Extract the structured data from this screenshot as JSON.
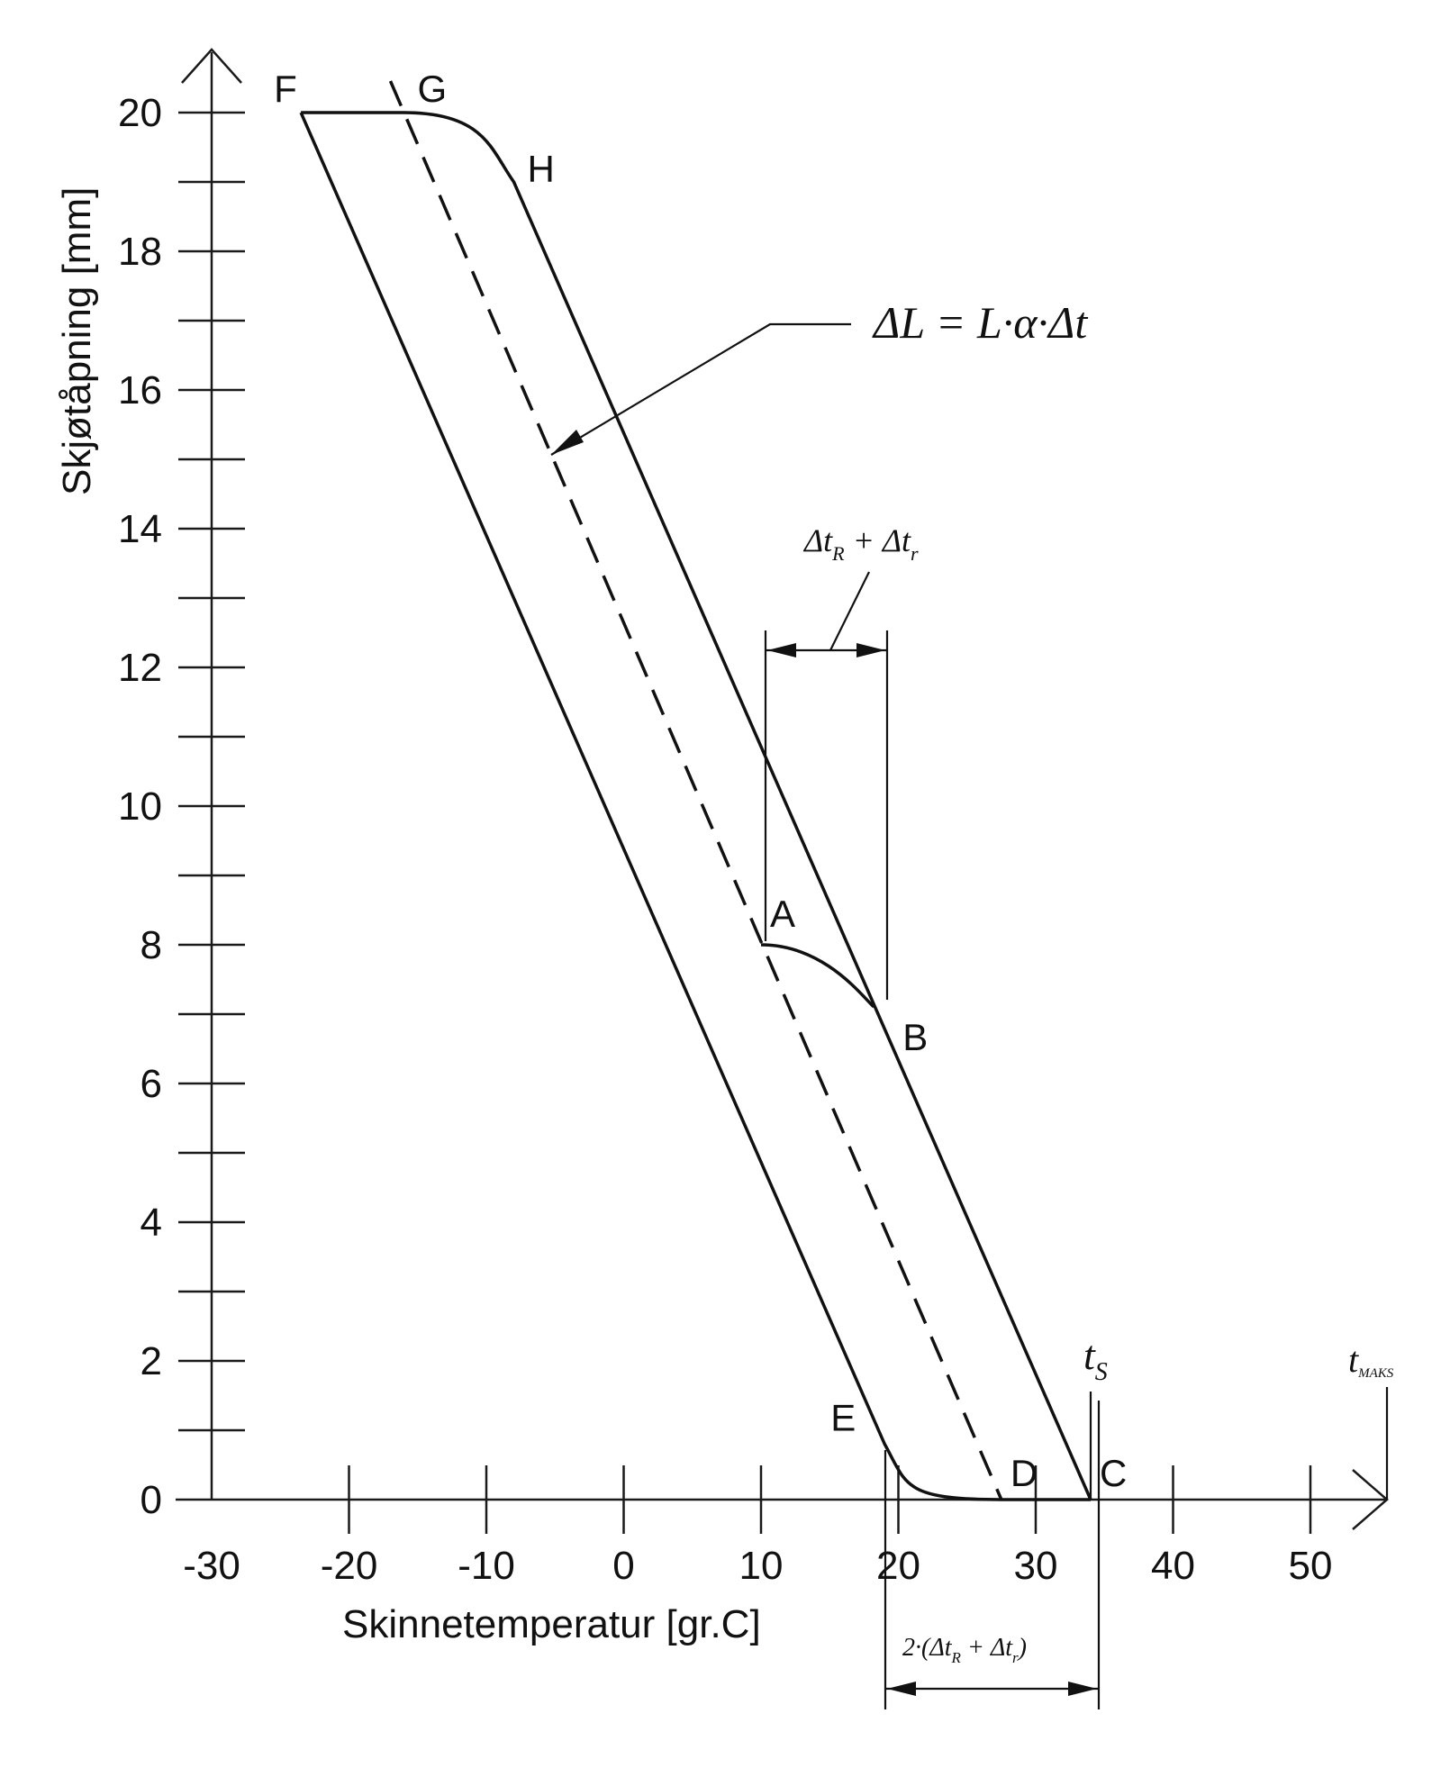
{
  "chart_data": {
    "type": "line",
    "xlabel": "Skinnetemperatur [gr.C]",
    "ylabel": "Skjøtåpning [mm]",
    "xlim": [
      -30,
      55
    ],
    "ylim": [
      0,
      20
    ],
    "x_ticks": [
      -30,
      -20,
      -10,
      0,
      10,
      20,
      30,
      40,
      50
    ],
    "y_ticks": [
      0,
      2,
      4,
      6,
      8,
      10,
      12,
      14,
      16,
      18,
      20
    ],
    "x_tick_labels": [
      "-30",
      "-20",
      "-10",
      "0",
      "10",
      "20",
      "30",
      "40",
      "50"
    ],
    "y_tick_labels": [
      "0",
      "2",
      "4",
      "6",
      "8",
      "10",
      "12",
      "14",
      "16",
      "18",
      "20"
    ],
    "points": [
      {
        "label": "F",
        "x": -23.5,
        "y": 20
      },
      {
        "label": "G",
        "x": -16,
        "y": 20
      },
      {
        "label": "H",
        "x": -8,
        "y": 19
      },
      {
        "label": "A",
        "x": 10,
        "y": 8
      },
      {
        "label": "B",
        "x": 19,
        "y": 7
      },
      {
        "label": "C",
        "x": 34,
        "y": 0
      },
      {
        "label": "D",
        "x": 27.5,
        "y": 0
      },
      {
        "label": "E",
        "x": 19,
        "y": 0.8
      }
    ],
    "series": [
      {
        "x": [
          -23.5,
          -16,
          -8,
          19,
          34
        ],
        "y": [
          20,
          20,
          19,
          7,
          0
        ]
      },
      {
        "x": [
          -23.5,
          19,
          27.5,
          34
        ],
        "y": [
          20,
          0.8,
          0,
          0
        ]
      },
      {
        "x": [
          -16,
          27.5
        ],
        "y": [
          20,
          0
        ]
      },
      {
        "x": [
          10,
          19
        ],
        "y": [
          8,
          7
        ]
      }
    ],
    "annotations": {
      "formula": "ΔL = L·α·Δt",
      "bracket_top": "Δt_R + Δt_r",
      "bracket_bottom": "2·(Δt_R + Δt_r)",
      "ts_label": "t_S",
      "tmax_label": "t_MAKS"
    },
    "grid": false
  }
}
